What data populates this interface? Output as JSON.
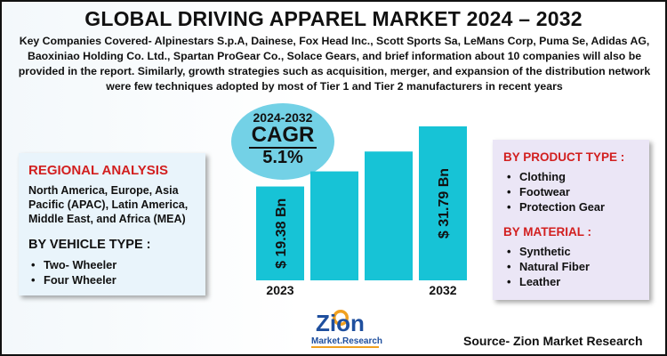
{
  "title": "GLOBAL DRIVING APPAREL MARKET 2024 – 2032",
  "description": "Key Companies Covered- Alpinestars S.p.A, Dainese, Fox Head Inc., Scott Sports Sa, LeMans Corp, Puma Se, Adidas AG, Baoxiniao Holding Co. Ltd., Spartan ProGear Co., Solace Gears, and brief information about 10 companies will also be provided in the report. Similarly, growth strategies such as acquisition, merger, and expansion of the distribution network were few techniques adopted by most of Tier 1 and Tier 2 manufacturers in recent years",
  "cagr": {
    "years": "2024-2032",
    "label": "CAGR",
    "value": "5.1%"
  },
  "regional": {
    "title": "REGIONAL ANALYSIS",
    "text": "North America, Europe, Asia Pacific (APAC), Latin America, Middle East, and Africa (MEA)"
  },
  "vehicle": {
    "title": "BY VEHICLE TYPE :",
    "items": [
      "Two- Wheeler",
      "Four Wheeler"
    ]
  },
  "product": {
    "title": "BY PRODUCT TYPE :",
    "items": [
      "Clothing",
      "Footwear",
      "Protection Gear"
    ]
  },
  "material": {
    "title": "BY MATERIAL :",
    "items": [
      "Synthetic",
      "Natural Fiber",
      "Leather"
    ]
  },
  "source": "Source- Zion Market Research",
  "logo": {
    "line1": "Zion",
    "line2": "Market.Research"
  },
  "colors": {
    "bar": "#17c3d6",
    "title_red": "#d21f1f",
    "bubble": "#73d1e6"
  },
  "chart_data": {
    "type": "bar",
    "categories": [
      "2023",
      "",
      "",
      "2032"
    ],
    "values": [
      19.38,
      22.5,
      26.6,
      31.79
    ],
    "data_labels": [
      "$ 19.38 Bn",
      "",
      "",
      "$ 31.79 Bn"
    ],
    "unit": "USD Bn",
    "title": "",
    "xlabel": "",
    "ylabel": "",
    "grid": false,
    "legend": "none"
  }
}
